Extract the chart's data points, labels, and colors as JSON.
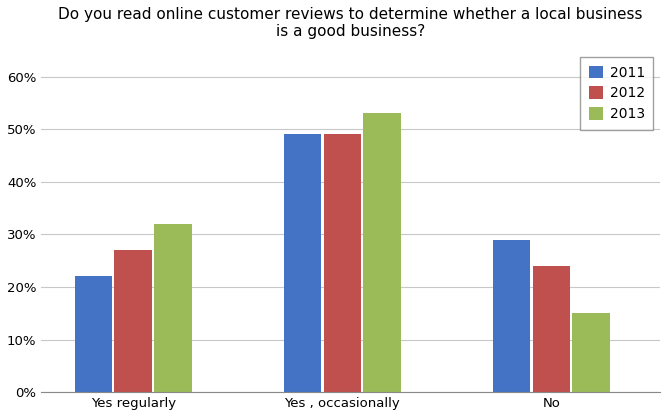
{
  "title": "Do you read online customer reviews to determine whether a local business\nis a good business?",
  "categories": [
    "Yes regularly",
    "Yes , occasionally",
    "No"
  ],
  "years": [
    "2011",
    "2012",
    "2013"
  ],
  "values": {
    "2011": [
      0.22,
      0.49,
      0.29
    ],
    "2012": [
      0.27,
      0.49,
      0.24
    ],
    "2013": [
      0.32,
      0.53,
      0.15
    ]
  },
  "colors": {
    "2011": "#4472C4",
    "2012": "#C0504D",
    "2013": "#9BBB59"
  },
  "ylim": [
    0,
    0.65
  ],
  "yticks": [
    0,
    0.1,
    0.2,
    0.3,
    0.4,
    0.5,
    0.6
  ],
  "background_color": "#FFFFFF",
  "grid_color": "#C8C8C8",
  "title_fontsize": 11,
  "legend_fontsize": 10,
  "tick_fontsize": 9.5
}
